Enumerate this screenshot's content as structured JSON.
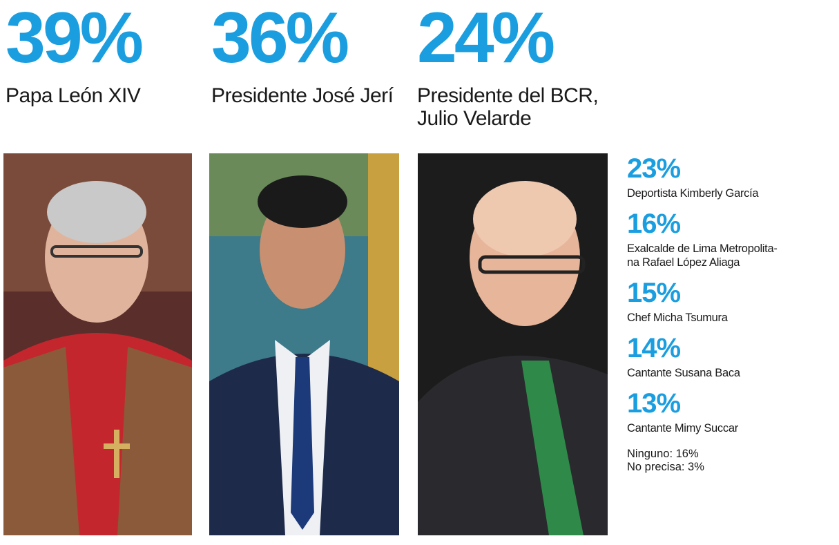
{
  "chart_data": {
    "type": "bar",
    "title": "",
    "categories": [
      "Papa León XIV",
      "Presidente José Jerí",
      "Presidente del BCR, Julio Velarde",
      "Deportista Kimberly García",
      "Exalcalde de Lima Metropolitana Rafael López Aliaga",
      "Chef Micha Tsumura",
      "Cantante Susana Baca",
      "Cantante Mimy Succar"
    ],
    "values": [
      39,
      36,
      24,
      23,
      16,
      15,
      14,
      13
    ],
    "unit": "%"
  },
  "top": [
    {
      "pct": "39%",
      "label": "Papa León XIV"
    },
    {
      "pct": "36%",
      "label": "Presidente José Jerí"
    },
    {
      "pct": "24%",
      "label": "Presidente del BCR,\nJulio Velarde"
    }
  ],
  "side": [
    {
      "pct": "23%",
      "label": "Deportista Kimberly García"
    },
    {
      "pct": "16%",
      "label": "Exalcalde de Lima Metropolita-\nna Rafael López Aliaga"
    },
    {
      "pct": "15%",
      "label": "Chef Micha Tsumura"
    },
    {
      "pct": "14%",
      "label": "Cantante Susana Baca"
    },
    {
      "pct": "13%",
      "label": "Cantante Mimy Succar"
    }
  ],
  "other": {
    "ninguno": "Ninguno: 16%",
    "no_precisa": "No precisa: 3%"
  },
  "colors": {
    "accent": "#1a9ee0",
    "text": "#1a1a1a"
  }
}
